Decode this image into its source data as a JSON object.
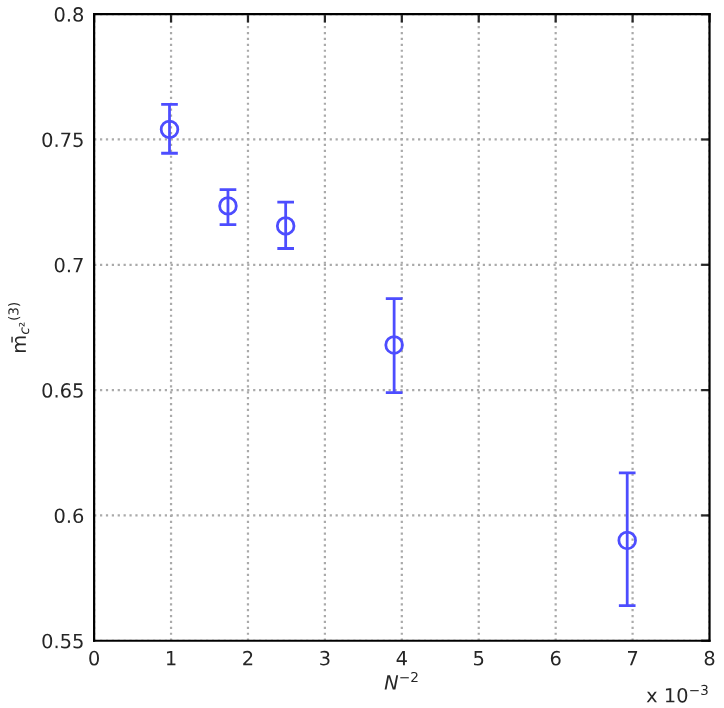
{
  "chart_data": {
    "type": "scatter",
    "xlabel": "N$^{−2}$",
    "ylabel": "m̄$_{c²}$$^{(3)}$",
    "annotations": [
      "x 10$^{−3}$"
    ],
    "x": [
      0.98,
      1.74,
      2.49,
      3.9,
      6.93
    ],
    "series": [
      {
        "color": "#4d4dff",
        "values": [
          0.754,
          0.7235,
          0.7155,
          0.668,
          0.59
        ],
        "errors": [
          [
            0.7445,
            0.764
          ],
          [
            0.716,
            0.73
          ],
          [
            0.7065,
            0.725
          ],
          [
            0.649,
            0.6865
          ],
          [
            0.564,
            0.617
          ]
        ]
      }
    ],
    "xlim": [
      0,
      8
    ],
    "xticks": [
      0,
      1,
      2,
      3,
      4,
      5,
      6,
      7,
      8
    ],
    "ylim": [
      0.55,
      0.8
    ],
    "yticks": [
      0.55,
      0.6,
      0.65,
      0.7,
      0.75,
      0.8
    ],
    "grid": true,
    "marker": "circle"
  }
}
